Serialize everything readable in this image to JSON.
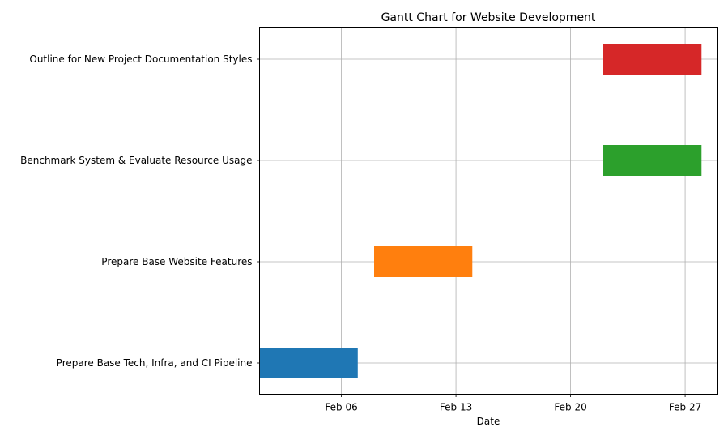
{
  "chart_data": {
    "type": "gantt",
    "title": "Gantt Chart for Website Development",
    "xlabel": "Date",
    "ylabel": "",
    "grid": true,
    "x_ticks": [
      {
        "label": "Feb 06",
        "date": "2023-02-06"
      },
      {
        "label": "Feb 13",
        "date": "2023-02-13"
      },
      {
        "label": "Feb 20",
        "date": "2023-02-20"
      },
      {
        "label": "Feb 27",
        "date": "2023-02-27"
      }
    ],
    "xlim": [
      "2023-02-01",
      "2023-02-29"
    ],
    "tasks": [
      {
        "name": "Prepare Base Tech, Infra, and CI Pipeline",
        "start": "2023-02-01",
        "end": "2023-02-07",
        "color": "#1f77b4"
      },
      {
        "name": "Prepare Base Website Features",
        "start": "2023-02-08",
        "end": "2023-02-14",
        "color": "#ff7f0e"
      },
      {
        "name": "Benchmark System & Evaluate Resource Usage",
        "start": "2023-02-22",
        "end": "2023-02-28",
        "color": "#2ca02c"
      },
      {
        "name": "Outline for New Project Documentation Styles",
        "start": "2023-02-22",
        "end": "2023-02-28",
        "color": "#d62728"
      }
    ]
  }
}
